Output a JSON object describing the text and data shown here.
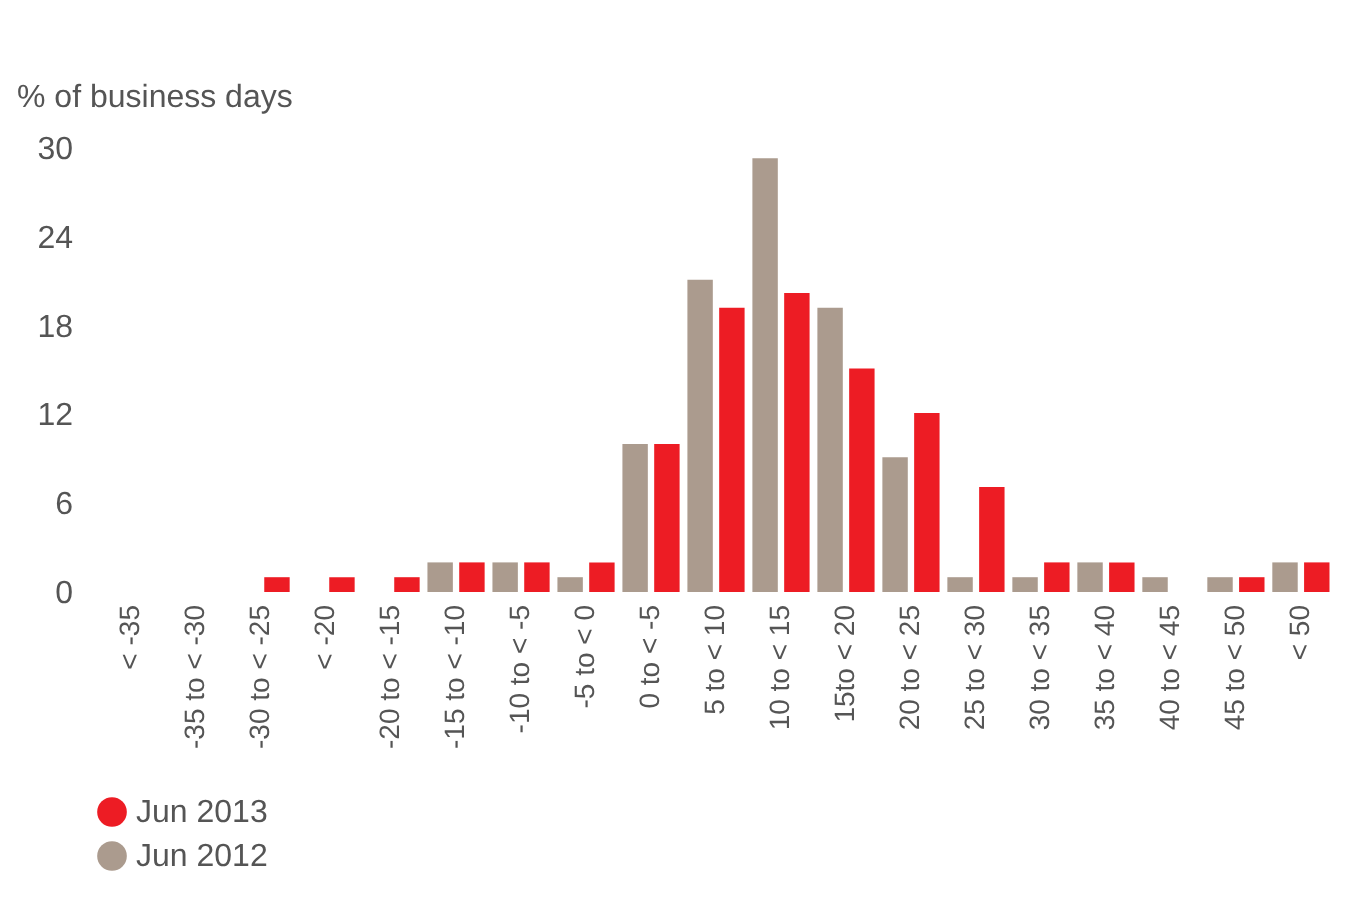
{
  "chart_data": {
    "type": "bar",
    "ylabel": "% of business days",
    "categories": [
      "< -35",
      "-35 to < -30",
      "-30 to < -25",
      "< -20",
      "-20 to < -15",
      "-15 to < -10",
      "-10 to < -5",
      "-5 to < 0",
      "0 to < -5",
      "5 to < 10",
      "10 to < 15",
      "15to < 20",
      "20 to < 25",
      "25 to < 30",
      "30 to < 35",
      "35 to < 40",
      "40 to < 45",
      "45 to < 50",
      "< 50"
    ],
    "series": [
      {
        "name": "Jun 2013",
        "color": "#ed1c24",
        "values": [
          0,
          0,
          1,
          1,
          1,
          2,
          2,
          2,
          10,
          19.2,
          20.2,
          15.1,
          12.1,
          7.1,
          2,
          2,
          0,
          1,
          2
        ]
      },
      {
        "name": "Jun 2012",
        "color": "#ab9b8e",
        "values": [
          0,
          0,
          0,
          0,
          0,
          2,
          2,
          1,
          10,
          21.1,
          29.3,
          19.2,
          9.1,
          1,
          1,
          2,
          1,
          1,
          2
        ]
      }
    ],
    "ylim": [
      0,
      30
    ],
    "yticks": [
      0,
      6,
      12,
      18,
      24,
      30
    ],
    "legend": "bottom"
  }
}
